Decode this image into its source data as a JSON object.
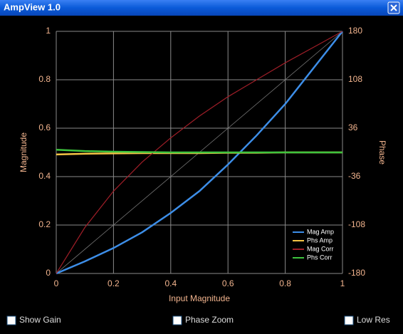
{
  "window": {
    "title": "AmpView 1.0"
  },
  "chart_data": {
    "type": "line",
    "x_label": "Input Magnitude",
    "y_label": "Magnitude",
    "y2_label": "Phase",
    "x": [
      0,
      0.1,
      0.2,
      0.3,
      0.4,
      0.5,
      0.6,
      0.7,
      0.8,
      0.9,
      1
    ],
    "series": [
      {
        "name": "Mag Amp",
        "color": "#3d8ee8",
        "values": [
          0,
          0.05,
          0.105,
          0.17,
          0.25,
          0.34,
          0.45,
          0.57,
          0.7,
          0.85,
          1
        ]
      },
      {
        "name": "Phs Amp",
        "color": "#f5c445",
        "axis": "y2",
        "values": [
          -3,
          -2,
          -1.5,
          -1,
          -1,
          -1,
          -0.5,
          -0.5,
          0,
          0,
          0
        ]
      },
      {
        "name": "Mag Corr",
        "color": "#a01e28",
        "values": [
          0,
          0.19,
          0.34,
          0.46,
          0.56,
          0.65,
          0.73,
          0.8,
          0.87,
          0.935,
          1
        ]
      },
      {
        "name": "Phs Corr",
        "color": "#3ec43e",
        "axis": "y2",
        "values": [
          4,
          2,
          1,
          0.5,
          0,
          0,
          0,
          0,
          0,
          0,
          0
        ]
      }
    ],
    "xlim": [
      0,
      1
    ],
    "xticks": [
      0,
      0.2,
      0.4,
      0.6,
      0.8,
      1
    ],
    "ylim": [
      0,
      1
    ],
    "yticks": [
      0,
      0.2,
      0.4,
      0.6,
      0.8,
      1
    ],
    "y2lim": [
      -180,
      180
    ],
    "y2ticks": [
      -180,
      -108,
      -36,
      36,
      108,
      180
    ],
    "grid": true,
    "legend": "lower right"
  },
  "checkboxes": [
    {
      "label": "Show Gain"
    },
    {
      "label": "Phase Zoom"
    },
    {
      "label": "Low Res"
    }
  ]
}
